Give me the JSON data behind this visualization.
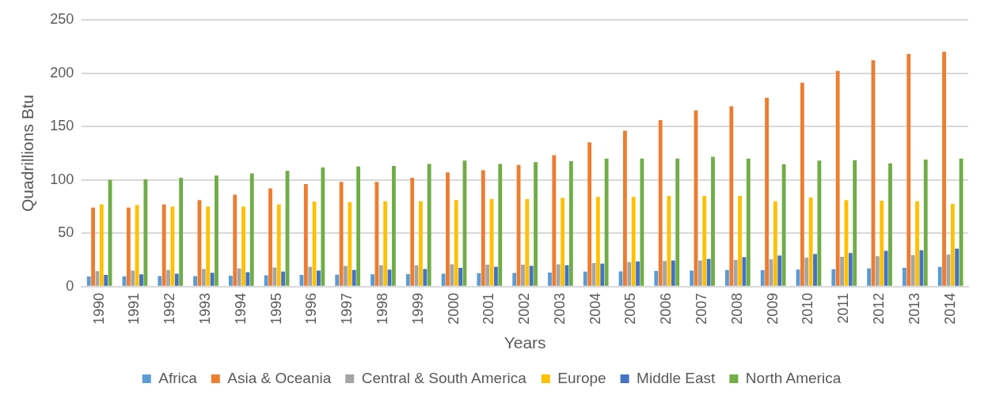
{
  "chart_data": {
    "type": "bar",
    "xlabel": "Years",
    "ylabel": "Quadrillions Btu",
    "categories": [
      "1990",
      "1991",
      "1992",
      "1993",
      "1994",
      "1995",
      "1996",
      "1997",
      "1998",
      "1999",
      "2000",
      "2001",
      "2002",
      "2003",
      "2004",
      "2005",
      "2006",
      "2007",
      "2008",
      "2009",
      "2010",
      "2011",
      "2012",
      "2013",
      "2014"
    ],
    "series": [
      {
        "name": "Africa",
        "color": "#5b9bd5",
        "values": [
          9.5,
          9.6,
          9.8,
          9.9,
          10.2,
          10.6,
          11,
          11.2,
          11.4,
          11.6,
          12,
          12.5,
          12.8,
          13.2,
          14,
          14.3,
          14.6,
          15,
          15.5,
          15.3,
          16,
          16.2,
          17,
          17.5,
          18.5
        ]
      },
      {
        "name": "Asia & Oceania",
        "color": "#ed7d31",
        "values": [
          74,
          74,
          77,
          81,
          86,
          92,
          96,
          98,
          98,
          102,
          107,
          109,
          114,
          123,
          135,
          146,
          156,
          165,
          169,
          177,
          191,
          202,
          212,
          218,
          220
        ]
      },
      {
        "name": "Central & South America",
        "color": "#a5a5a5",
        "values": [
          14.5,
          15,
          15.5,
          16.5,
          17,
          18,
          18.5,
          19.5,
          20,
          20,
          21,
          20.5,
          20.5,
          21,
          22,
          23,
          24,
          24.5,
          25,
          25.5,
          27,
          28,
          28.5,
          29.5,
          30
        ]
      },
      {
        "name": "Europe",
        "color": "#ffc000",
        "values": [
          77,
          76.5,
          75,
          75,
          75,
          77,
          79.5,
          79,
          80,
          80,
          81,
          82,
          82,
          83,
          84,
          84,
          85,
          85,
          85,
          80,
          83.5,
          81,
          80.5,
          80,
          77.5
        ]
      },
      {
        "name": "Middle East",
        "color": "#4472c4",
        "values": [
          11,
          11.5,
          12,
          13,
          13.5,
          14,
          15,
          15.5,
          16,
          16.5,
          17.5,
          18.5,
          19.5,
          20,
          21.5,
          23.5,
          24.5,
          26,
          27.5,
          29,
          30.5,
          31.5,
          33.5,
          34,
          35.5
        ]
      },
      {
        "name": "North America",
        "color": "#70ad47",
        "values": [
          100,
          100.5,
          102,
          104,
          106,
          108.5,
          111.5,
          112.5,
          113,
          115,
          118,
          115,
          116.5,
          117.5,
          120,
          120,
          120,
          121.5,
          120,
          114.5,
          118,
          118.5,
          115.5,
          119,
          120
        ]
      }
    ],
    "ylim": [
      0,
      250
    ],
    "yticks": [
      0,
      50,
      100,
      150,
      200,
      250
    ],
    "grid": "y",
    "legend": "bottom"
  }
}
